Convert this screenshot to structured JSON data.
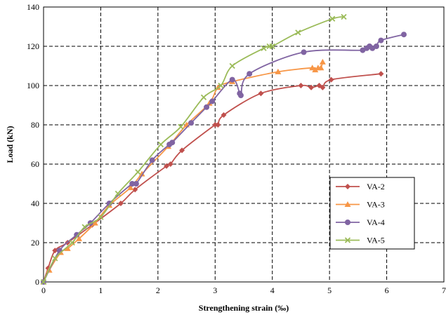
{
  "chart_data": {
    "type": "line",
    "xlabel": "Strengthening strain (‰)",
    "ylabel": "Load (kN)",
    "xlim": [
      0,
      7
    ],
    "ylim": [
      0,
      140
    ],
    "xticks": [
      "0",
      "1",
      "2",
      "3",
      "4",
      "5",
      "6",
      "7"
    ],
    "yticks": [
      "0",
      "20",
      "40",
      "60",
      "80",
      "100",
      "120",
      "140"
    ],
    "grid": true,
    "legend_position": "right",
    "series": [
      {
        "name": "VA-2",
        "color": "#c0504d",
        "marker": "diamond",
        "points": [
          [
            0,
            0
          ],
          [
            0.08,
            7
          ],
          [
            0.2,
            16
          ],
          [
            0.42,
            20
          ],
          [
            0.85,
            29
          ],
          [
            1.35,
            40
          ],
          [
            1.6,
            47
          ],
          [
            2.15,
            59
          ],
          [
            2.22,
            60
          ],
          [
            2.42,
            67
          ],
          [
            3.0,
            80
          ],
          [
            3.05,
            80
          ],
          [
            3.15,
            85
          ],
          [
            3.8,
            96
          ],
          [
            4.5,
            100
          ],
          [
            4.68,
            99
          ],
          [
            4.82,
            100
          ],
          [
            4.88,
            99
          ],
          [
            5.03,
            103
          ],
          [
            5.9,
            106
          ]
        ]
      },
      {
        "name": "VA-3",
        "color": "#f79646",
        "marker": "triangle",
        "points": [
          [
            0,
            0
          ],
          [
            0.1,
            6
          ],
          [
            0.3,
            15
          ],
          [
            0.42,
            17
          ],
          [
            0.62,
            22
          ],
          [
            0.9,
            30
          ],
          [
            1.15,
            39
          ],
          [
            1.52,
            48
          ],
          [
            1.72,
            55
          ],
          [
            2.18,
            69
          ],
          [
            2.5,
            80
          ],
          [
            2.9,
            91
          ],
          [
            3.05,
            99
          ],
          [
            3.3,
            102
          ],
          [
            4.1,
            107
          ],
          [
            4.7,
            109
          ],
          [
            4.75,
            108
          ],
          [
            4.8,
            109
          ],
          [
            4.85,
            109
          ],
          [
            4.88,
            112
          ]
        ]
      },
      {
        "name": "VA-4",
        "color": "#8064a2",
        "marker": "circle",
        "points": [
          [
            0,
            0
          ],
          [
            0.28,
            16
          ],
          [
            0.58,
            24
          ],
          [
            0.82,
            30
          ],
          [
            1.15,
            40
          ],
          [
            1.55,
            50
          ],
          [
            1.62,
            50
          ],
          [
            1.9,
            62
          ],
          [
            2.2,
            70
          ],
          [
            2.25,
            71
          ],
          [
            2.58,
            81
          ],
          [
            2.85,
            89
          ],
          [
            2.95,
            92
          ],
          [
            3.3,
            103
          ],
          [
            3.43,
            96
          ],
          [
            3.45,
            95
          ],
          [
            3.6,
            106
          ],
          [
            4.55,
            117
          ],
          [
            5.58,
            118
          ],
          [
            5.65,
            119
          ],
          [
            5.7,
            120
          ],
          [
            5.75,
            119
          ],
          [
            5.82,
            120
          ],
          [
            5.9,
            123
          ],
          [
            6.3,
            126
          ]
        ]
      },
      {
        "name": "VA-5",
        "color": "#9bbb59",
        "marker": "x",
        "points": [
          [
            0,
            0
          ],
          [
            0.2,
            12
          ],
          [
            0.5,
            20
          ],
          [
            0.72,
            28
          ],
          [
            1.0,
            33
          ],
          [
            1.3,
            45
          ],
          [
            1.65,
            56
          ],
          [
            2.05,
            70
          ],
          [
            2.4,
            79
          ],
          [
            2.8,
            94
          ],
          [
            3.1,
            100
          ],
          [
            3.3,
            110
          ],
          [
            3.85,
            119
          ],
          [
            3.95,
            120
          ],
          [
            4.0,
            120
          ],
          [
            4.45,
            127
          ],
          [
            5.05,
            134
          ],
          [
            5.25,
            135
          ]
        ]
      }
    ]
  }
}
